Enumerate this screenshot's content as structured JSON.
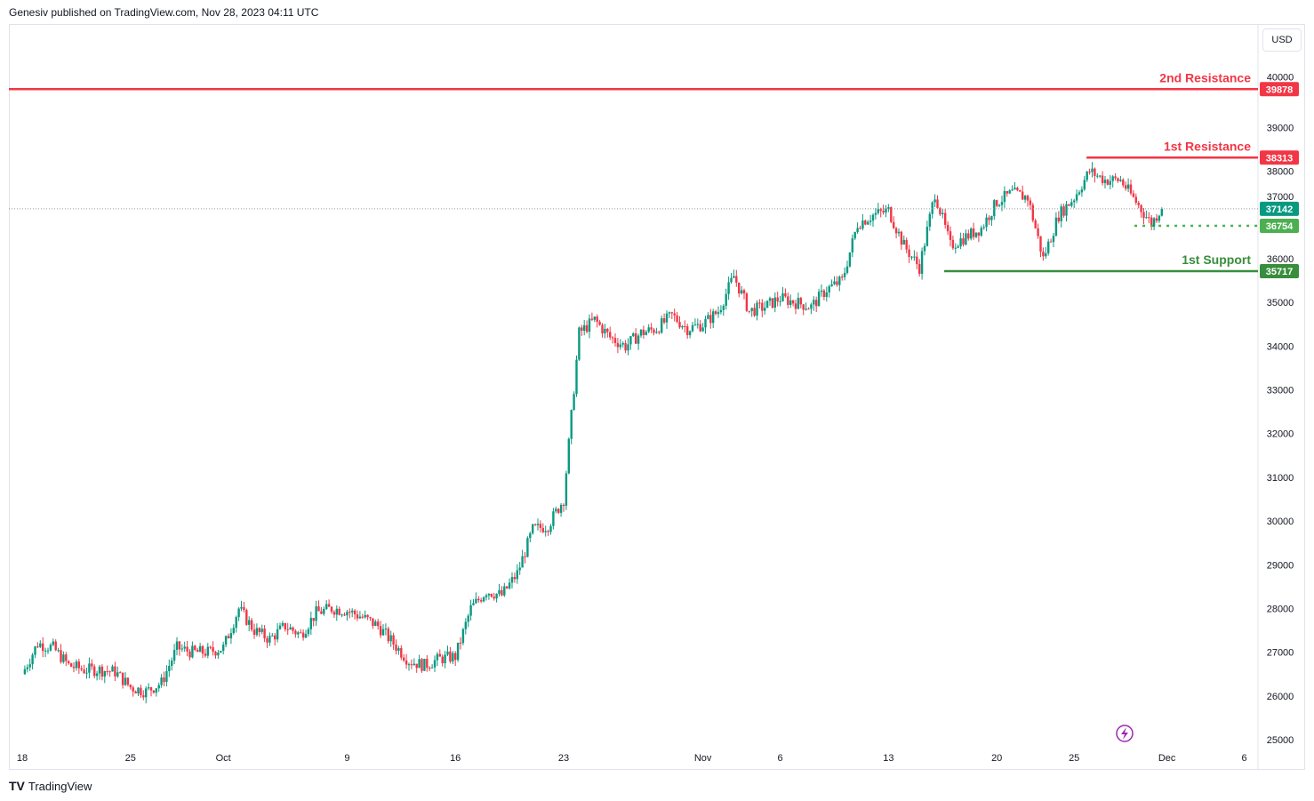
{
  "header": {
    "text": "Genesiv published on TradingView.com, Nov 28, 2023 04:11 UTC"
  },
  "currency": "USD",
  "logo_text": "TradingView",
  "colors": {
    "up": "#089981",
    "down": "#f23645",
    "resistance": "#f23645",
    "support": "#388e3c",
    "support_light": "#4caf50",
    "last": "#089981"
  },
  "chart_data": {
    "type": "candlestick",
    "title": "",
    "ylim": [
      25000,
      40000
    ],
    "y_ticks": [
      25000,
      26000,
      27000,
      28000,
      29000,
      30000,
      31000,
      32000,
      33000,
      34000,
      35000,
      36000,
      37000,
      38000,
      39000,
      40000
    ],
    "x_ticks": [
      {
        "label": "18",
        "day": 0
      },
      {
        "label": "25",
        "day": 7
      },
      {
        "label": "Oct",
        "day": 13
      },
      {
        "label": "9",
        "day": 21
      },
      {
        "label": "16",
        "day": 28
      },
      {
        "label": "23",
        "day": 35
      },
      {
        "label": "Nov",
        "day": 44
      },
      {
        "label": "6",
        "day": 49
      },
      {
        "label": "13",
        "day": 56
      },
      {
        "label": "20",
        "day": 63
      },
      {
        "label": "25",
        "day": 68
      },
      {
        "label": "Dec",
        "day": 74
      },
      {
        "label": "6",
        "day": 79
      }
    ],
    "x_range_days": [
      0,
      79.3
    ],
    "candles_per_day": 6,
    "price_path": [
      [
        0,
        26500
      ],
      [
        1,
        27200
      ],
      [
        2,
        27100
      ],
      [
        3,
        26700
      ],
      [
        4,
        26600
      ],
      [
        5,
        26600
      ],
      [
        6,
        26550
      ],
      [
        7,
        26200
      ],
      [
        8,
        26100
      ],
      [
        9,
        26300
      ],
      [
        10,
        27100
      ],
      [
        11,
        27000
      ],
      [
        12,
        27000
      ],
      [
        13,
        27100
      ],
      [
        14,
        28000
      ],
      [
        15,
        27500
      ],
      [
        16,
        27300
      ],
      [
        17,
        27600
      ],
      [
        18,
        27400
      ],
      [
        19,
        27900
      ],
      [
        20,
        28000
      ],
      [
        21,
        27950
      ],
      [
        22,
        27800
      ],
      [
        23,
        27600
      ],
      [
        24,
        27200
      ],
      [
        25,
        26800
      ],
      [
        26,
        26700
      ],
      [
        27,
        26850
      ],
      [
        28,
        26900
      ],
      [
        29,
        28000
      ],
      [
        30,
        28400
      ],
      [
        31,
        28300
      ],
      [
        32,
        28800
      ],
      [
        33,
        29800
      ],
      [
        34,
        29900
      ],
      [
        35,
        30500
      ],
      [
        36,
        34300
      ],
      [
        37,
        34600
      ],
      [
        38,
        34200
      ],
      [
        39,
        34000
      ],
      [
        40,
        34300
      ],
      [
        41,
        34400
      ],
      [
        42,
        34700
      ],
      [
        43,
        34400
      ],
      [
        44,
        34500
      ],
      [
        45,
        34800
      ],
      [
        46,
        35600
      ],
      [
        47,
        34800
      ],
      [
        48,
        34900
      ],
      [
        49,
        35100
      ],
      [
        50,
        35000
      ],
      [
        51,
        34900
      ],
      [
        52,
        35300
      ],
      [
        53,
        35500
      ],
      [
        54,
        36800
      ],
      [
        55,
        37000
      ],
      [
        56,
        37100
      ],
      [
        57,
        36300
      ],
      [
        58,
        35800
      ],
      [
        59,
        37500
      ],
      [
        60,
        36300
      ],
      [
        61,
        36500
      ],
      [
        62,
        36700
      ],
      [
        63,
        37300
      ],
      [
        64,
        37500
      ],
      [
        65,
        37400
      ],
      [
        66,
        36000
      ],
      [
        67,
        37000
      ],
      [
        68,
        37400
      ],
      [
        69,
        38000
      ],
      [
        70,
        37800
      ],
      [
        71,
        37800
      ],
      [
        72,
        37300
      ],
      [
        73,
        36800
      ],
      [
        73.6,
        37142
      ]
    ],
    "levels": [
      {
        "name": "2nd Resistance",
        "value": 39878,
        "label": "39878",
        "kind": "resistance",
        "from_day": null
      },
      {
        "name": "1st Resistance",
        "value": 38313,
        "label": "38313",
        "kind": "resistance",
        "from_day": 68.8
      },
      {
        "name": "1st Support",
        "value": 35717,
        "label": "35717",
        "kind": "support",
        "from_day": 59.6
      }
    ],
    "last_price": {
      "value": 37142,
      "label": "37142"
    },
    "recent_low": {
      "value": 36754,
      "label": "36754",
      "from_day": 71.9
    }
  }
}
